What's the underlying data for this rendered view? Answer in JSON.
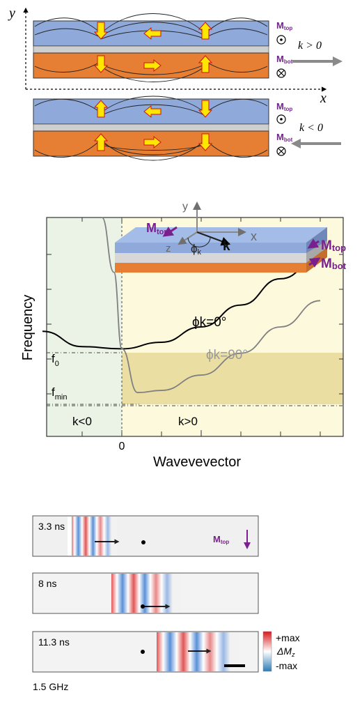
{
  "panel_a": {
    "axis_y": "y",
    "axis_x": "x",
    "m_top": "M",
    "m_top_sub": "top",
    "m_bot": "M",
    "m_bot_sub": "bot",
    "k_pos": "k > 0",
    "k_neg": "k < 0"
  },
  "panel_b": {
    "ylabel": "Frequency",
    "xlabel": "Wavevevector",
    "zero_tick": "0",
    "region_neg": "k<0",
    "region_pos": "k>0",
    "f0": "f",
    "f0_sub": "0",
    "fmin": "f",
    "fmin_sub": "min",
    "curve_0": "ϕk=0°",
    "curve_90": "ϕk=90°",
    "inset": {
      "y": "y",
      "x": "x",
      "z": "z",
      "phi": "ϕ",
      "phi_sub": "k",
      "k": "k",
      "m_top": "M",
      "m_top_sub": "top",
      "m_bot": "M",
      "m_bot_sub": "bot"
    },
    "chart_data": {
      "type": "line",
      "xlabel": "Wavevevector",
      "ylabel": "Frequency",
      "x_ticks": [
        "0"
      ],
      "y_marks": [
        "f0",
        "fmin"
      ],
      "series": [
        {
          "name": "ϕk=0°",
          "color": "#000000",
          "x": [
            -1.0,
            -0.5,
            0.0,
            0.5,
            1.0,
            1.5,
            2.0,
            2.5
          ],
          "y": [
            0.48,
            0.41,
            0.4,
            0.43,
            0.5,
            0.6,
            0.72,
            0.82
          ]
        },
        {
          "name": "ϕk=90°",
          "color": "#808080",
          "x": [
            -0.25,
            -0.1,
            0.0,
            0.2,
            0.5,
            1.0,
            1.5,
            2.0,
            2.5
          ],
          "y": [
            1.0,
            0.75,
            0.4,
            0.2,
            0.21,
            0.28,
            0.38,
            0.5,
            0.62
          ]
        }
      ]
    }
  },
  "panel_c": {
    "frames": [
      {
        "time": "3.3 ns"
      },
      {
        "time": "8 ns"
      },
      {
        "time": "11.3 ns"
      }
    ],
    "m_top": "M",
    "m_top_sub": "top",
    "colorbar_max": "+max",
    "colorbar_label": "ΔM",
    "colorbar_label_sub": "z",
    "colorbar_min": "-max",
    "freq": "1.5 GHz"
  }
}
